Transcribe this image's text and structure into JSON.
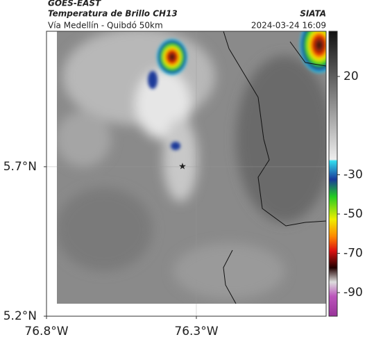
{
  "header": {
    "title": "GOES-EAST",
    "subtitle": "Temperatura de Brillo CH13",
    "location": "Vía Medellín - Quibdó 50km",
    "source": "SIATA",
    "timestamp": "2024-03-24 16:09"
  },
  "map": {
    "xlim": [
      -76.8,
      -75.867
    ],
    "ylim": [
      5.2,
      6.153
    ],
    "xticks": [
      {
        "value": -76.8,
        "label": "76.8°W"
      },
      {
        "value": -76.3,
        "label": "76.3°W"
      }
    ],
    "yticks": [
      {
        "value": 5.2,
        "label": "5.2°N"
      },
      {
        "value": 5.7,
        "label": "5.7°N"
      }
    ],
    "grid": true
  },
  "colorbar": {
    "lim": [
      -102,
      43
    ],
    "ticks": [
      20,
      -30,
      -50,
      -70,
      -90
    ]
  }
}
